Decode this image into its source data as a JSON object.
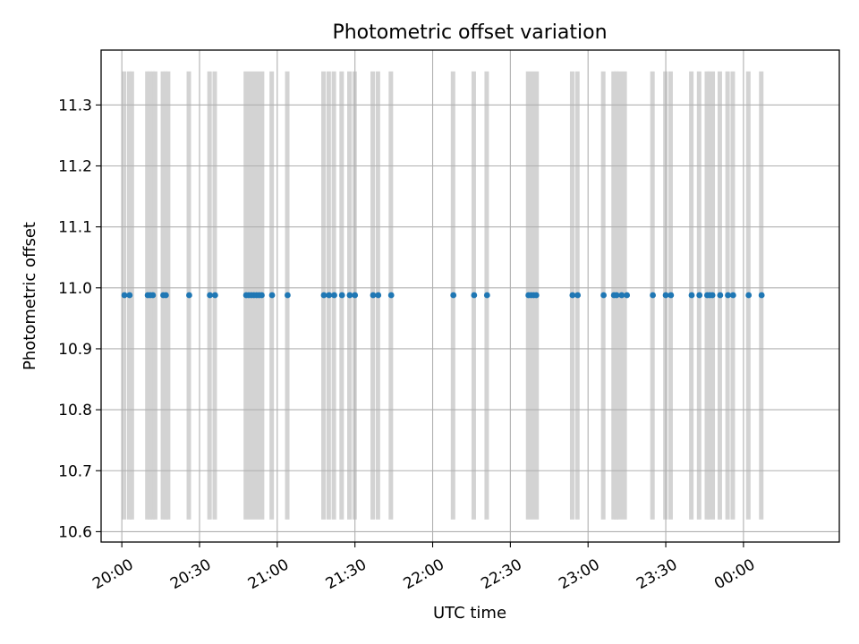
{
  "chart_data": {
    "type": "scatter",
    "title": "Photometric offset variation",
    "xlabel": "UTC time",
    "ylabel": "Photometric offset",
    "x_unit": "UTC time (HH:MM, spanning midnight)",
    "xlim": [
      "19:52",
      "00:37"
    ],
    "ylim": [
      10.583,
      11.39
    ],
    "x_ticks": [
      "20:00",
      "20:30",
      "21:00",
      "21:30",
      "22:00",
      "22:30",
      "23:00",
      "23:30",
      "00:00"
    ],
    "y_ticks": [
      "10.6",
      "10.7",
      "10.8",
      "10.9",
      "11.0",
      "11.1",
      "11.2",
      "11.3"
    ],
    "grid": true,
    "colors": {
      "points": "#1f77b4",
      "bands": "#d3d3d3",
      "grid": "#b0b0b0"
    },
    "band_y_range": [
      10.62,
      11.355
    ],
    "series": [
      {
        "x": [
          "20:01",
          "20:03",
          "20:10",
          "20:11",
          "20:12",
          "20:16",
          "20:17",
          "20:26",
          "20:34",
          "20:36",
          "20:48",
          "20:49",
          "20:50",
          "20:51",
          "20:52",
          "20:53",
          "20:54",
          "20:58",
          "21:04",
          "21:18",
          "21:20",
          "21:22",
          "21:25",
          "21:28",
          "21:30",
          "21:37",
          "21:39",
          "21:44",
          "22:08",
          "22:16",
          "22:21",
          "22:37",
          "22:38",
          "22:39",
          "22:40",
          "22:54",
          "22:56",
          "23:06",
          "23:10",
          "23:11",
          "23:13",
          "23:15",
          "23:25",
          "23:30",
          "23:32",
          "23:40",
          "23:43",
          "23:46",
          "23:47",
          "23:48",
          "23:51",
          "23:54",
          "23:56",
          "00:02",
          "00:07"
        ],
        "y": [
          10.988,
          10.988,
          10.988,
          10.988,
          10.988,
          10.988,
          10.988,
          10.988,
          10.988,
          10.988,
          10.988,
          10.988,
          10.988,
          10.988,
          10.988,
          10.988,
          10.988,
          10.988,
          10.988,
          10.988,
          10.988,
          10.988,
          10.988,
          10.988,
          10.988,
          10.988,
          10.988,
          10.988,
          10.988,
          10.988,
          10.988,
          10.988,
          10.988,
          10.988,
          10.988,
          10.988,
          10.988,
          10.988,
          10.988,
          10.988,
          10.988,
          10.988,
          10.988,
          10.988,
          10.988,
          10.988,
          10.988,
          10.988,
          10.988,
          10.988,
          10.988,
          10.988,
          10.988,
          10.988,
          10.988
        ]
      }
    ],
    "bands": [
      [
        "20:00",
        "20:01"
      ],
      [
        "20:02",
        "20:03"
      ],
      [
        "20:03",
        "20:04"
      ],
      [
        "20:09",
        "20:10"
      ],
      [
        "20:10",
        "20:11"
      ],
      [
        "20:11",
        "20:12"
      ],
      [
        "20:12",
        "20:13"
      ],
      [
        "20:15",
        "20:16"
      ],
      [
        "20:16",
        "20:17"
      ],
      [
        "20:17",
        "20:18"
      ],
      [
        "20:25",
        "20:26"
      ],
      [
        "20:33",
        "20:34"
      ],
      [
        "20:35",
        "20:36"
      ],
      [
        "20:47",
        "20:55"
      ],
      [
        "20:57",
        "20:58"
      ],
      [
        "21:03",
        "21:04"
      ],
      [
        "21:17",
        "21:18"
      ],
      [
        "21:19",
        "21:20"
      ],
      [
        "21:21",
        "21:22"
      ],
      [
        "21:24",
        "21:25"
      ],
      [
        "21:27",
        "21:28"
      ],
      [
        "21:29",
        "21:30"
      ],
      [
        "21:36",
        "21:37"
      ],
      [
        "21:38",
        "21:39"
      ],
      [
        "21:43",
        "21:44"
      ],
      [
        "22:07",
        "22:08"
      ],
      [
        "22:15",
        "22:16"
      ],
      [
        "22:20",
        "22:21"
      ],
      [
        "22:36",
        "22:41"
      ],
      [
        "22:53",
        "22:54"
      ],
      [
        "22:55",
        "22:56"
      ],
      [
        "23:05",
        "23:06"
      ],
      [
        "23:09",
        "23:10"
      ],
      [
        "23:10",
        "23:11"
      ],
      [
        "23:11",
        "23:15"
      ],
      [
        "23:24",
        "23:25"
      ],
      [
        "23:29",
        "23:30"
      ],
      [
        "23:31",
        "23:32"
      ],
      [
        "23:39",
        "23:40"
      ],
      [
        "23:42",
        "23:43"
      ],
      [
        "23:45",
        "23:46"
      ],
      [
        "23:46",
        "23:49"
      ],
      [
        "23:50",
        "23:51"
      ],
      [
        "23:53",
        "23:54"
      ],
      [
        "23:55",
        "23:56"
      ],
      [
        "00:01",
        "00:02"
      ],
      [
        "00:06",
        "00:07"
      ]
    ]
  }
}
